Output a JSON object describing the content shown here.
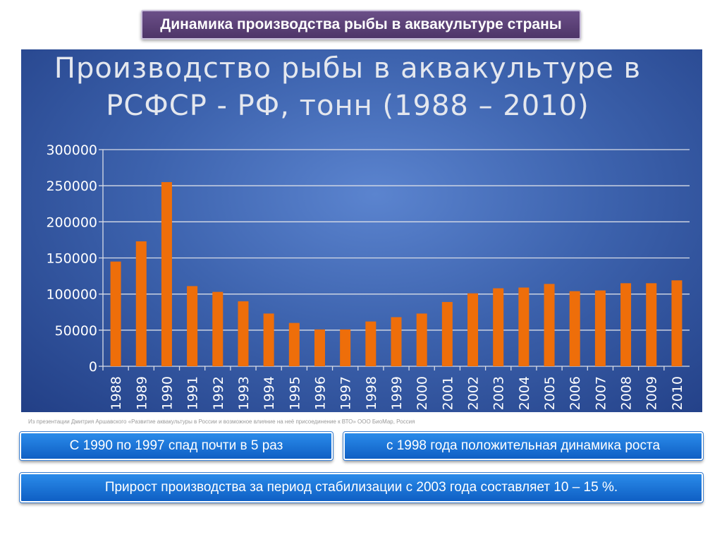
{
  "header": {
    "title": "Динамика производства рыбы в аквакультуре страны"
  },
  "chart_data": {
    "type": "bar",
    "title_lines": [
      "Производство рыбы в аквакультуре в",
      "РСФСР - РФ, тонн (1988 – 2010)"
    ],
    "categories": [
      "1988",
      "1989",
      "1990",
      "1991",
      "1992",
      "1993",
      "1994",
      "1995",
      "1996",
      "1997",
      "1998",
      "1999",
      "2000",
      "2001",
      "2002",
      "2003",
      "2004",
      "2005",
      "2006",
      "2007",
      "2008",
      "2009",
      "2010"
    ],
    "values": [
      145000,
      173000,
      255000,
      111000,
      103000,
      90000,
      73000,
      60000,
      51000,
      51000,
      62000,
      68000,
      73000,
      89000,
      101000,
      108000,
      109000,
      114000,
      104000,
      105000,
      115000,
      115000,
      119000
    ],
    "yticks": [
      "0",
      "50000",
      "100000",
      "150000",
      "200000",
      "250000",
      "300000"
    ],
    "ylim": [
      0,
      300000
    ],
    "ystep": 50000,
    "grid": true,
    "legend": "none",
    "bar_color": "#ee6e0a"
  },
  "source_note": "Из презентации Дмитрия Аршавского «Развитие аквакультуры в России и возможное влияние на неё присоединение к ВТО» ООО БиоМар, Россия",
  "boxes": {
    "decline": "С 1990 по 1997 спад почти в 5 раз",
    "growth": "с 1998 года положительная динамика роста",
    "increase": "Прирост производства за период стабилизации с 2003 года составляет 10 – 15 %."
  }
}
